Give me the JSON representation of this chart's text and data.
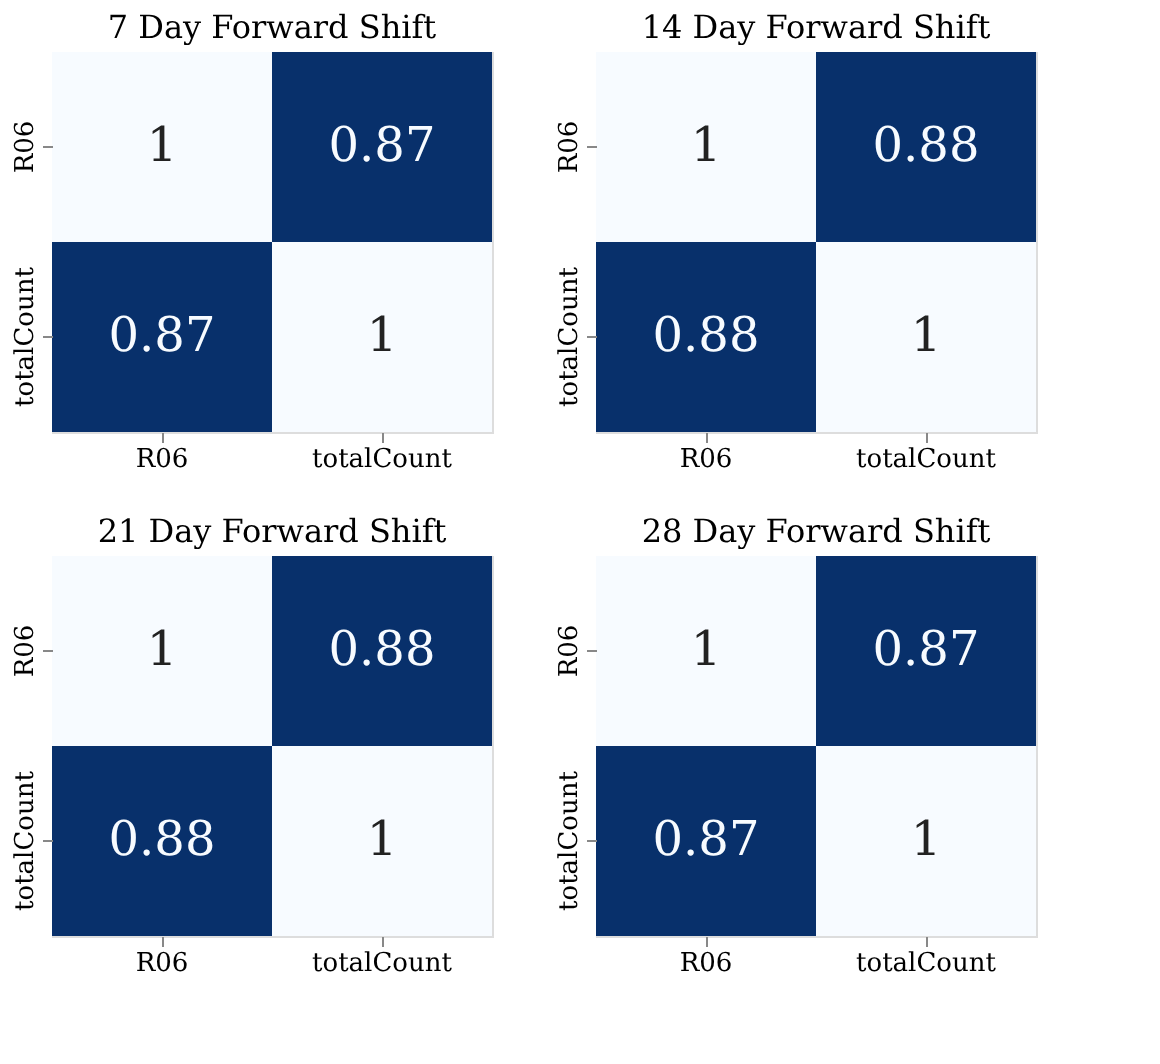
{
  "chart_data": [
    {
      "type": "heatmap",
      "data_labels": true,
      "title": "7 Day Forward Shift",
      "categories": [
        "R06",
        "totalCount"
      ],
      "y_categories": [
        "R06",
        "totalCount"
      ],
      "cells": [
        [
          1,
          0.87
        ],
        [
          0.87,
          1
        ]
      ],
      "colors": [
        "#08306b",
        "#f7fbff"
      ]
    },
    {
      "type": "heatmap",
      "data_labels": true,
      "title": "14 Day Forward Shift",
      "categories": [
        "R06",
        "totalCount"
      ],
      "y_categories": [
        "R06",
        "totalCount"
      ],
      "cells": [
        [
          1,
          0.88
        ],
        [
          0.88,
          1
        ]
      ],
      "colors": [
        "#08306b",
        "#f7fbff"
      ]
    },
    {
      "type": "heatmap",
      "data_labels": true,
      "title": "21 Day Forward Shift",
      "categories": [
        "R06",
        "totalCount"
      ],
      "y_categories": [
        "R06",
        "totalCount"
      ],
      "cells": [
        [
          1,
          0.88
        ],
        [
          0.88,
          1
        ]
      ],
      "colors": [
        "#08306b",
        "#f7fbff"
      ]
    },
    {
      "type": "heatmap",
      "data_labels": true,
      "title": "28 Day Forward Shift",
      "categories": [
        "R06",
        "totalCount"
      ],
      "y_categories": [
        "R06",
        "totalCount"
      ],
      "cells": [
        [
          1,
          0.87
        ],
        [
          0.87,
          1
        ]
      ],
      "colors": [
        "#08306b",
        "#f7fbff"
      ]
    }
  ]
}
